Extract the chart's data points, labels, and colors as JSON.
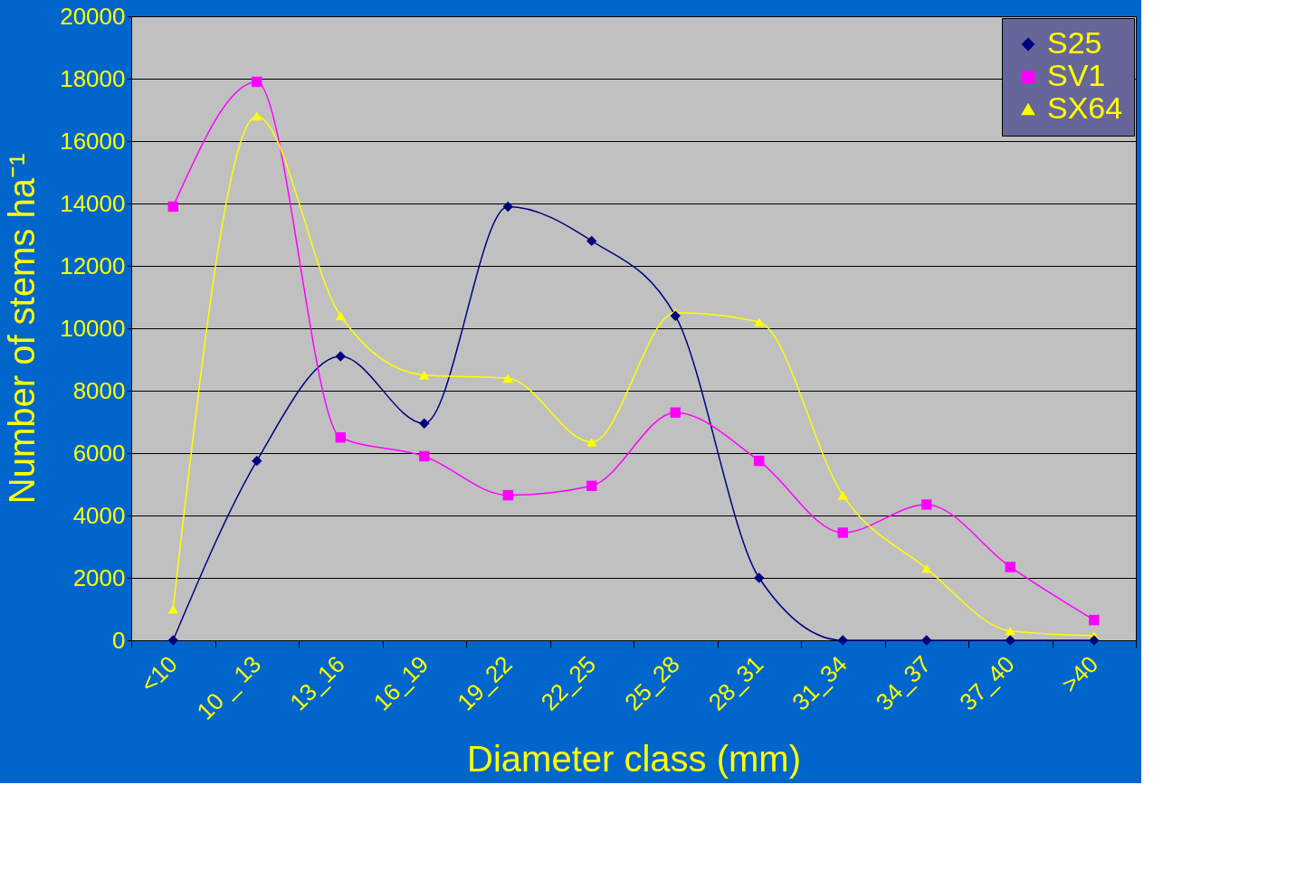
{
  "chart_data": {
    "type": "line",
    "xlabel": "Diameter class (mm)",
    "ylabel": "Number of stems ha⁻¹",
    "categories": [
      "<10",
      "10 _ 13",
      "13_16",
      "16_19",
      "19_22",
      "22_25",
      "25_28",
      "28_31",
      "31_34",
      "34_37",
      "37_40",
      ">40"
    ],
    "series": [
      {
        "name": "S25",
        "color": "#000080",
        "marker": "diamond",
        "values": [
          0,
          5750,
          9100,
          6950,
          13900,
          12800,
          10400,
          2000,
          0,
          0,
          0,
          0
        ]
      },
      {
        "name": "SV1",
        "color": "#ff00ff",
        "marker": "square",
        "values": [
          13900,
          17900,
          6500,
          5900,
          4650,
          4950,
          7300,
          5750,
          3450,
          4350,
          2350,
          650
        ]
      },
      {
        "name": "SX64",
        "color": "#ffff00",
        "marker": "triangle",
        "values": [
          1000,
          16800,
          10400,
          8500,
          8400,
          6350,
          10500,
          10200,
          4650,
          2300,
          300,
          150
        ]
      }
    ],
    "ylim": [
      0,
      20000
    ],
    "yticks": [
      0,
      2000,
      4000,
      6000,
      8000,
      10000,
      12000,
      14000,
      16000,
      18000,
      20000
    ],
    "grid": "y",
    "legend": "top right"
  }
}
